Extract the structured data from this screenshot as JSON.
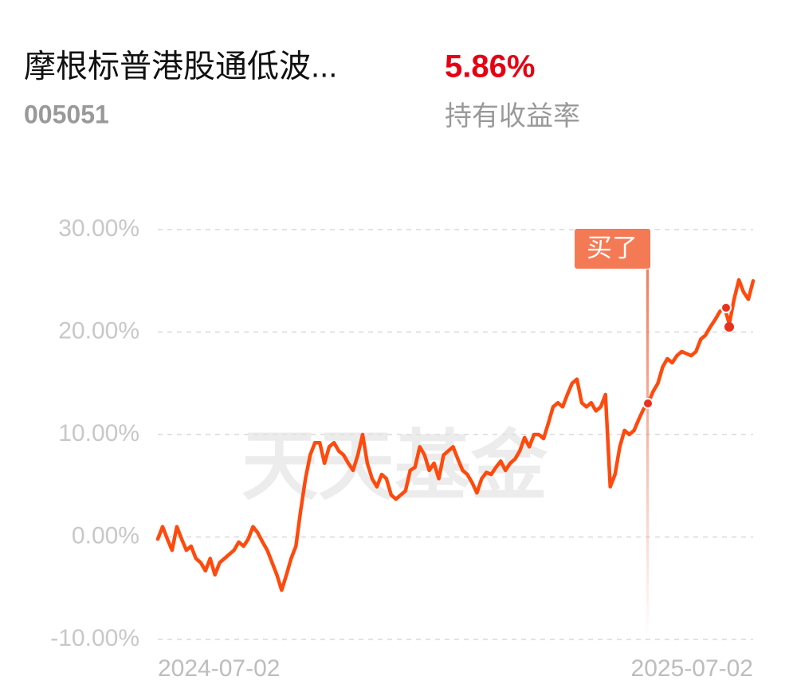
{
  "chart_data": {
    "type": "line",
    "title": "摩根标普港股通低波...",
    "code": "005051",
    "return_value": "5.86%",
    "return_label": "持有收益率",
    "annotation": "买了",
    "watermark": "天天基金",
    "color": "#ff4a0d",
    "grid": true,
    "ylim": [
      -10,
      30
    ],
    "yticks": [
      {
        "value": 30,
        "label": "30.00%"
      },
      {
        "value": 20,
        "label": "20.00%"
      },
      {
        "value": 10,
        "label": "10.00%"
      },
      {
        "value": 0,
        "label": "0.00%"
      },
      {
        "value": -10,
        "label": "-10.00%"
      }
    ],
    "categories": [
      "2024-07-02",
      null,
      null,
      null,
      null,
      null,
      null,
      null,
      null,
      null,
      null,
      null,
      null,
      null,
      null,
      null,
      null,
      null,
      null,
      null,
      null,
      null,
      null,
      null,
      null,
      null,
      null,
      null,
      null,
      null,
      null,
      null,
      null,
      null,
      null,
      null,
      null,
      null,
      null,
      null,
      null,
      null,
      null,
      null,
      null,
      null,
      null,
      null,
      null,
      null,
      null,
      null,
      null,
      null,
      null,
      null,
      null,
      null,
      null,
      null,
      null,
      null,
      null,
      null,
      null,
      null,
      null,
      null,
      null,
      null,
      null,
      null,
      null,
      null,
      null,
      null,
      null,
      null,
      null,
      null,
      null,
      null,
      null,
      null,
      null,
      null,
      null,
      null,
      null,
      null,
      null,
      null,
      null,
      null,
      null,
      null,
      null,
      null,
      null,
      null,
      null,
      null,
      null,
      null,
      null,
      null,
      null,
      null,
      null,
      null,
      null,
      null,
      null,
      null,
      null,
      null,
      null,
      null,
      null,
      null,
      null,
      null,
      null,
      null,
      null,
      "2025-07-02"
    ],
    "values": [
      -0.2,
      1.0,
      -0.2,
      -1.3,
      1.0,
      -0.2,
      -1.3,
      -0.9,
      -2.1,
      -2.5,
      -3.3,
      -2.1,
      -3.7,
      -2.5,
      -2.1,
      -1.7,
      -1.3,
      -0.5,
      -0.9,
      -0.2,
      1.0,
      0.4,
      -0.5,
      -1.3,
      -2.5,
      -3.7,
      -5.2,
      -3.7,
      -2.1,
      -0.9,
      2.6,
      5.7,
      8.0,
      9.2,
      9.2,
      7.2,
      8.8,
      9.2,
      8.4,
      8.0,
      7.2,
      6.5,
      8.0,
      10.0,
      7.2,
      5.7,
      4.9,
      6.1,
      5.7,
      4.1,
      3.7,
      4.1,
      4.5,
      6.5,
      6.8,
      8.8,
      8.0,
      6.5,
      7.2,
      5.7,
      8.0,
      8.4,
      8.8,
      7.6,
      6.5,
      6.1,
      5.3,
      4.3,
      5.7,
      6.3,
      6.1,
      6.8,
      7.4,
      6.5,
      7.2,
      7.6,
      8.4,
      9.7,
      8.8,
      10.0,
      10.0,
      9.6,
      11.1,
      12.7,
      13.1,
      12.7,
      13.9,
      15.0,
      15.4,
      13.1,
      12.7,
      13.1,
      12.3,
      12.7,
      13.9,
      4.9,
      6.1,
      8.8,
      10.4,
      10.0,
      10.4,
      11.5,
      12.5,
      13.1,
      14.2,
      15.0,
      16.6,
      17.4,
      17.0,
      17.7,
      18.1,
      17.9,
      17.7,
      18.1,
      19.3,
      19.7,
      20.5,
      21.2,
      22.0,
      22.4,
      20.8,
      23.2,
      25.1,
      23.9,
      23.2,
      25.0
    ]
  }
}
